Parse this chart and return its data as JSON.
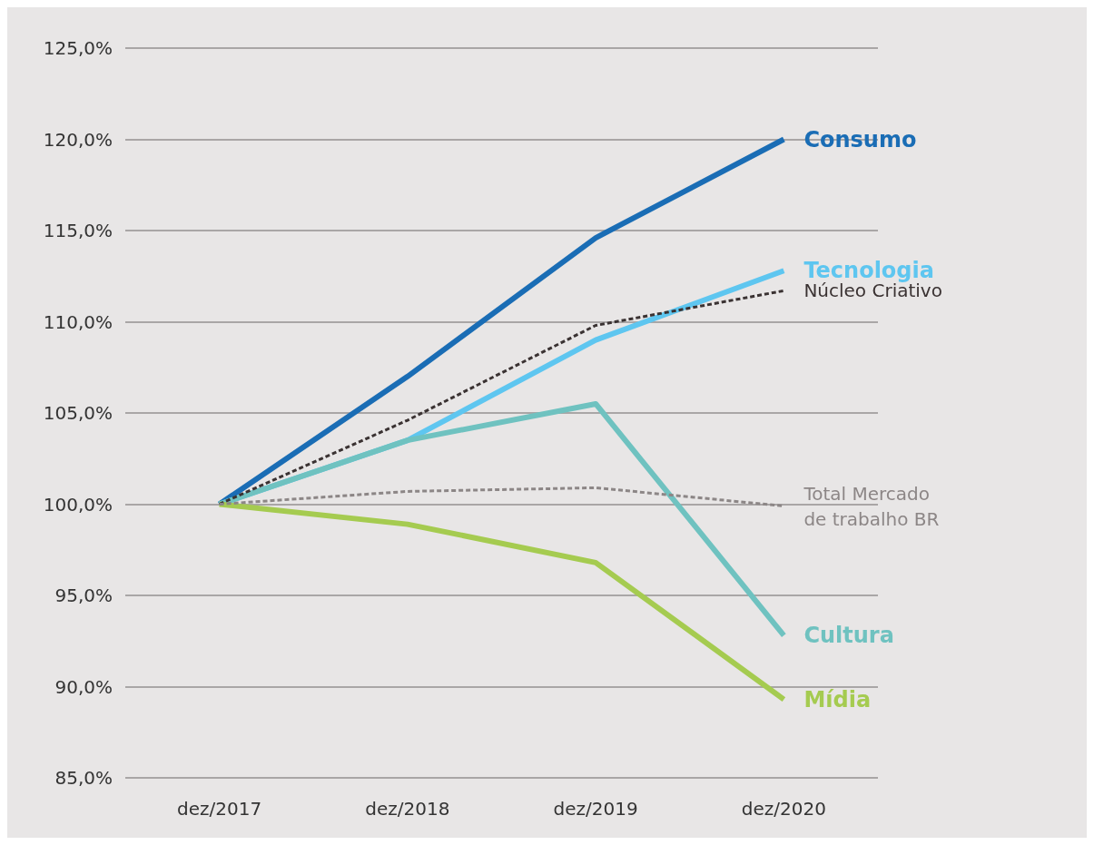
{
  "chart_data": {
    "type": "line",
    "categories": [
      "dez/2017",
      "dez/2018",
      "dez/2019",
      "dez/2020"
    ],
    "series": [
      {
        "name": "Consumo",
        "color": "#1a6db5",
        "values": [
          100,
          107.0,
          114.6,
          120.0
        ],
        "line_style": "solid"
      },
      {
        "name": "Tecnologia",
        "color": "#5ec6f0",
        "values": [
          100,
          103.5,
          109.0,
          112.8
        ],
        "line_style": "solid"
      },
      {
        "name": "Núcleo Criativo",
        "color": "#3a3232",
        "values": [
          100,
          104.6,
          109.8,
          111.7
        ],
        "line_style": "dashed"
      },
      {
        "name": "Total Mercado\nde trabalho BR",
        "color": "#8c8686",
        "values": [
          100,
          100.7,
          100.9,
          99.9
        ],
        "line_style": "dashed"
      },
      {
        "name": "Cultura",
        "color": "#6fc2c0",
        "values": [
          100,
          103.5,
          105.5,
          92.8
        ],
        "line_style": "solid"
      },
      {
        "name": "Mídia",
        "color": "#a5cb50",
        "values": [
          100,
          98.9,
          96.8,
          89.3
        ],
        "line_style": "solid"
      }
    ],
    "ylim": [
      85,
      125
    ],
    "yticks": [
      {
        "value": 85,
        "label": "85,0%"
      },
      {
        "value": 90,
        "label": "90,0%"
      },
      {
        "value": 95,
        "label": "95,0%"
      },
      {
        "value": 100,
        "label": "100,0%"
      },
      {
        "value": 105,
        "label": "105,0%"
      },
      {
        "value": 110,
        "label": "110,0%"
      },
      {
        "value": 115,
        "label": "115,0%"
      },
      {
        "value": 120,
        "label": "120,0%"
      },
      {
        "value": 125,
        "label": "125,0%"
      }
    ],
    "grid": "y",
    "legend": false,
    "marker": "none"
  }
}
